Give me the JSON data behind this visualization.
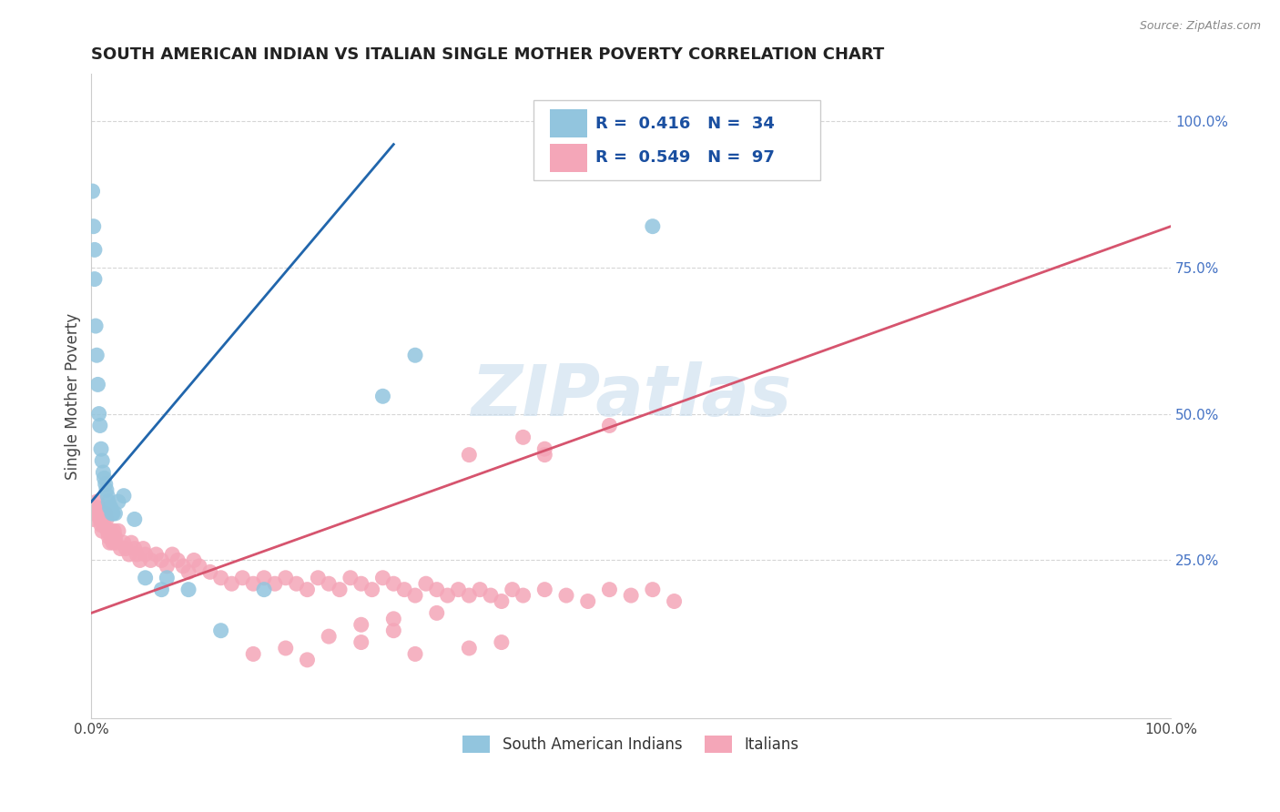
{
  "title": "SOUTH AMERICAN INDIAN VS ITALIAN SINGLE MOTHER POVERTY CORRELATION CHART",
  "source": "Source: ZipAtlas.com",
  "ylabel": "Single Mother Poverty",
  "xlim": [
    0.0,
    1.0
  ],
  "ylim": [
    -0.02,
    1.08
  ],
  "ytick_labels": [
    "25.0%",
    "50.0%",
    "75.0%",
    "100.0%"
  ],
  "ytick_values": [
    0.25,
    0.5,
    0.75,
    1.0
  ],
  "legend_label_blue": "South American Indians",
  "legend_label_pink": "Italians",
  "blue_color": "#92c5de",
  "pink_color": "#f4a6b8",
  "blue_line_color": "#2166ac",
  "pink_line_color": "#d6546e",
  "watermark_color": "#c8dced",
  "background_color": "#ffffff",
  "blue_x": [
    0.001,
    0.002,
    0.003,
    0.003,
    0.004,
    0.005,
    0.006,
    0.007,
    0.008,
    0.009,
    0.01,
    0.011,
    0.012,
    0.013,
    0.014,
    0.015,
    0.016,
    0.017,
    0.018,
    0.019,
    0.02,
    0.022,
    0.025,
    0.03,
    0.04,
    0.05,
    0.065,
    0.07,
    0.09,
    0.12,
    0.16,
    0.27,
    0.3,
    0.52
  ],
  "blue_y": [
    0.88,
    0.82,
    0.78,
    0.73,
    0.65,
    0.6,
    0.55,
    0.5,
    0.48,
    0.44,
    0.42,
    0.4,
    0.39,
    0.38,
    0.37,
    0.36,
    0.35,
    0.34,
    0.34,
    0.33,
    0.33,
    0.33,
    0.35,
    0.36,
    0.32,
    0.22,
    0.2,
    0.22,
    0.2,
    0.13,
    0.2,
    0.53,
    0.6,
    0.82
  ],
  "blue_trendline_x": [
    0.0,
    0.28
  ],
  "blue_trendline_y": [
    0.35,
    0.96
  ],
  "pink_trendline_x": [
    0.0,
    1.0
  ],
  "pink_trendline_y": [
    0.16,
    0.82
  ],
  "pink_x": [
    0.002,
    0.003,
    0.004,
    0.005,
    0.006,
    0.007,
    0.008,
    0.009,
    0.01,
    0.011,
    0.012,
    0.013,
    0.014,
    0.015,
    0.016,
    0.017,
    0.018,
    0.019,
    0.02,
    0.021,
    0.022,
    0.023,
    0.025,
    0.027,
    0.03,
    0.032,
    0.035,
    0.037,
    0.04,
    0.042,
    0.045,
    0.048,
    0.05,
    0.055,
    0.06,
    0.065,
    0.07,
    0.075,
    0.08,
    0.085,
    0.09,
    0.095,
    0.1,
    0.11,
    0.12,
    0.13,
    0.14,
    0.15,
    0.16,
    0.17,
    0.18,
    0.19,
    0.2,
    0.21,
    0.22,
    0.23,
    0.24,
    0.25,
    0.26,
    0.27,
    0.28,
    0.29,
    0.3,
    0.31,
    0.32,
    0.33,
    0.34,
    0.35,
    0.36,
    0.37,
    0.38,
    0.39,
    0.4,
    0.42,
    0.44,
    0.46,
    0.48,
    0.5,
    0.52,
    0.54,
    0.28,
    0.32,
    0.18,
    0.22,
    0.25,
    0.35,
    0.4,
    0.42,
    0.48,
    0.42,
    0.15,
    0.2,
    0.3,
    0.35,
    0.38,
    0.28,
    0.25
  ],
  "pink_y": [
    0.32,
    0.34,
    0.33,
    0.35,
    0.34,
    0.33,
    0.32,
    0.31,
    0.3,
    0.32,
    0.31,
    0.33,
    0.32,
    0.3,
    0.29,
    0.28,
    0.3,
    0.29,
    0.28,
    0.3,
    0.29,
    0.28,
    0.3,
    0.27,
    0.28,
    0.27,
    0.26,
    0.28,
    0.27,
    0.26,
    0.25,
    0.27,
    0.26,
    0.25,
    0.26,
    0.25,
    0.24,
    0.26,
    0.25,
    0.24,
    0.23,
    0.25,
    0.24,
    0.23,
    0.22,
    0.21,
    0.22,
    0.21,
    0.22,
    0.21,
    0.22,
    0.21,
    0.2,
    0.22,
    0.21,
    0.2,
    0.22,
    0.21,
    0.2,
    0.22,
    0.21,
    0.2,
    0.19,
    0.21,
    0.2,
    0.19,
    0.2,
    0.19,
    0.2,
    0.19,
    0.18,
    0.2,
    0.19,
    0.2,
    0.19,
    0.18,
    0.2,
    0.19,
    0.2,
    0.18,
    0.15,
    0.16,
    0.1,
    0.12,
    0.14,
    0.43,
    0.46,
    0.44,
    0.48,
    0.43,
    0.09,
    0.08,
    0.09,
    0.1,
    0.11,
    0.13,
    0.11
  ]
}
